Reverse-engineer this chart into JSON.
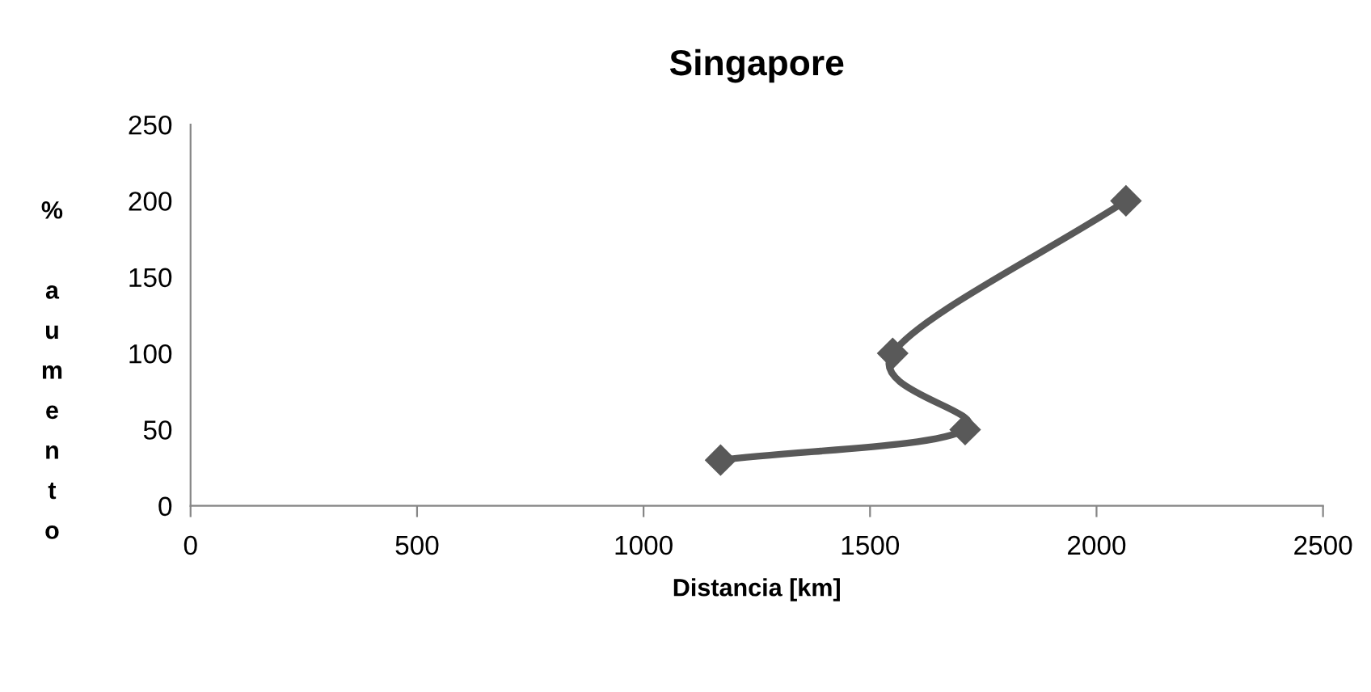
{
  "chart_data": {
    "type": "line",
    "title": "Singapore",
    "xlabel": "Distancia [km]",
    "ylabel": "% aumento",
    "series": [
      {
        "color": "#595959",
        "x": [
          1170,
          1710,
          1550,
          2065
        ],
        "values": [
          30,
          50,
          100,
          200
        ]
      }
    ],
    "xlim": [
      0,
      2500
    ],
    "xticks": [
      0,
      500,
      1000,
      1500,
      2000,
      2500
    ],
    "ylim": [
      0,
      250
    ],
    "yticks": [
      0,
      50,
      100,
      150,
      200,
      250
    ],
    "grid": false,
    "legend": false,
    "marker": "diamond",
    "line_style": "solid"
  }
}
